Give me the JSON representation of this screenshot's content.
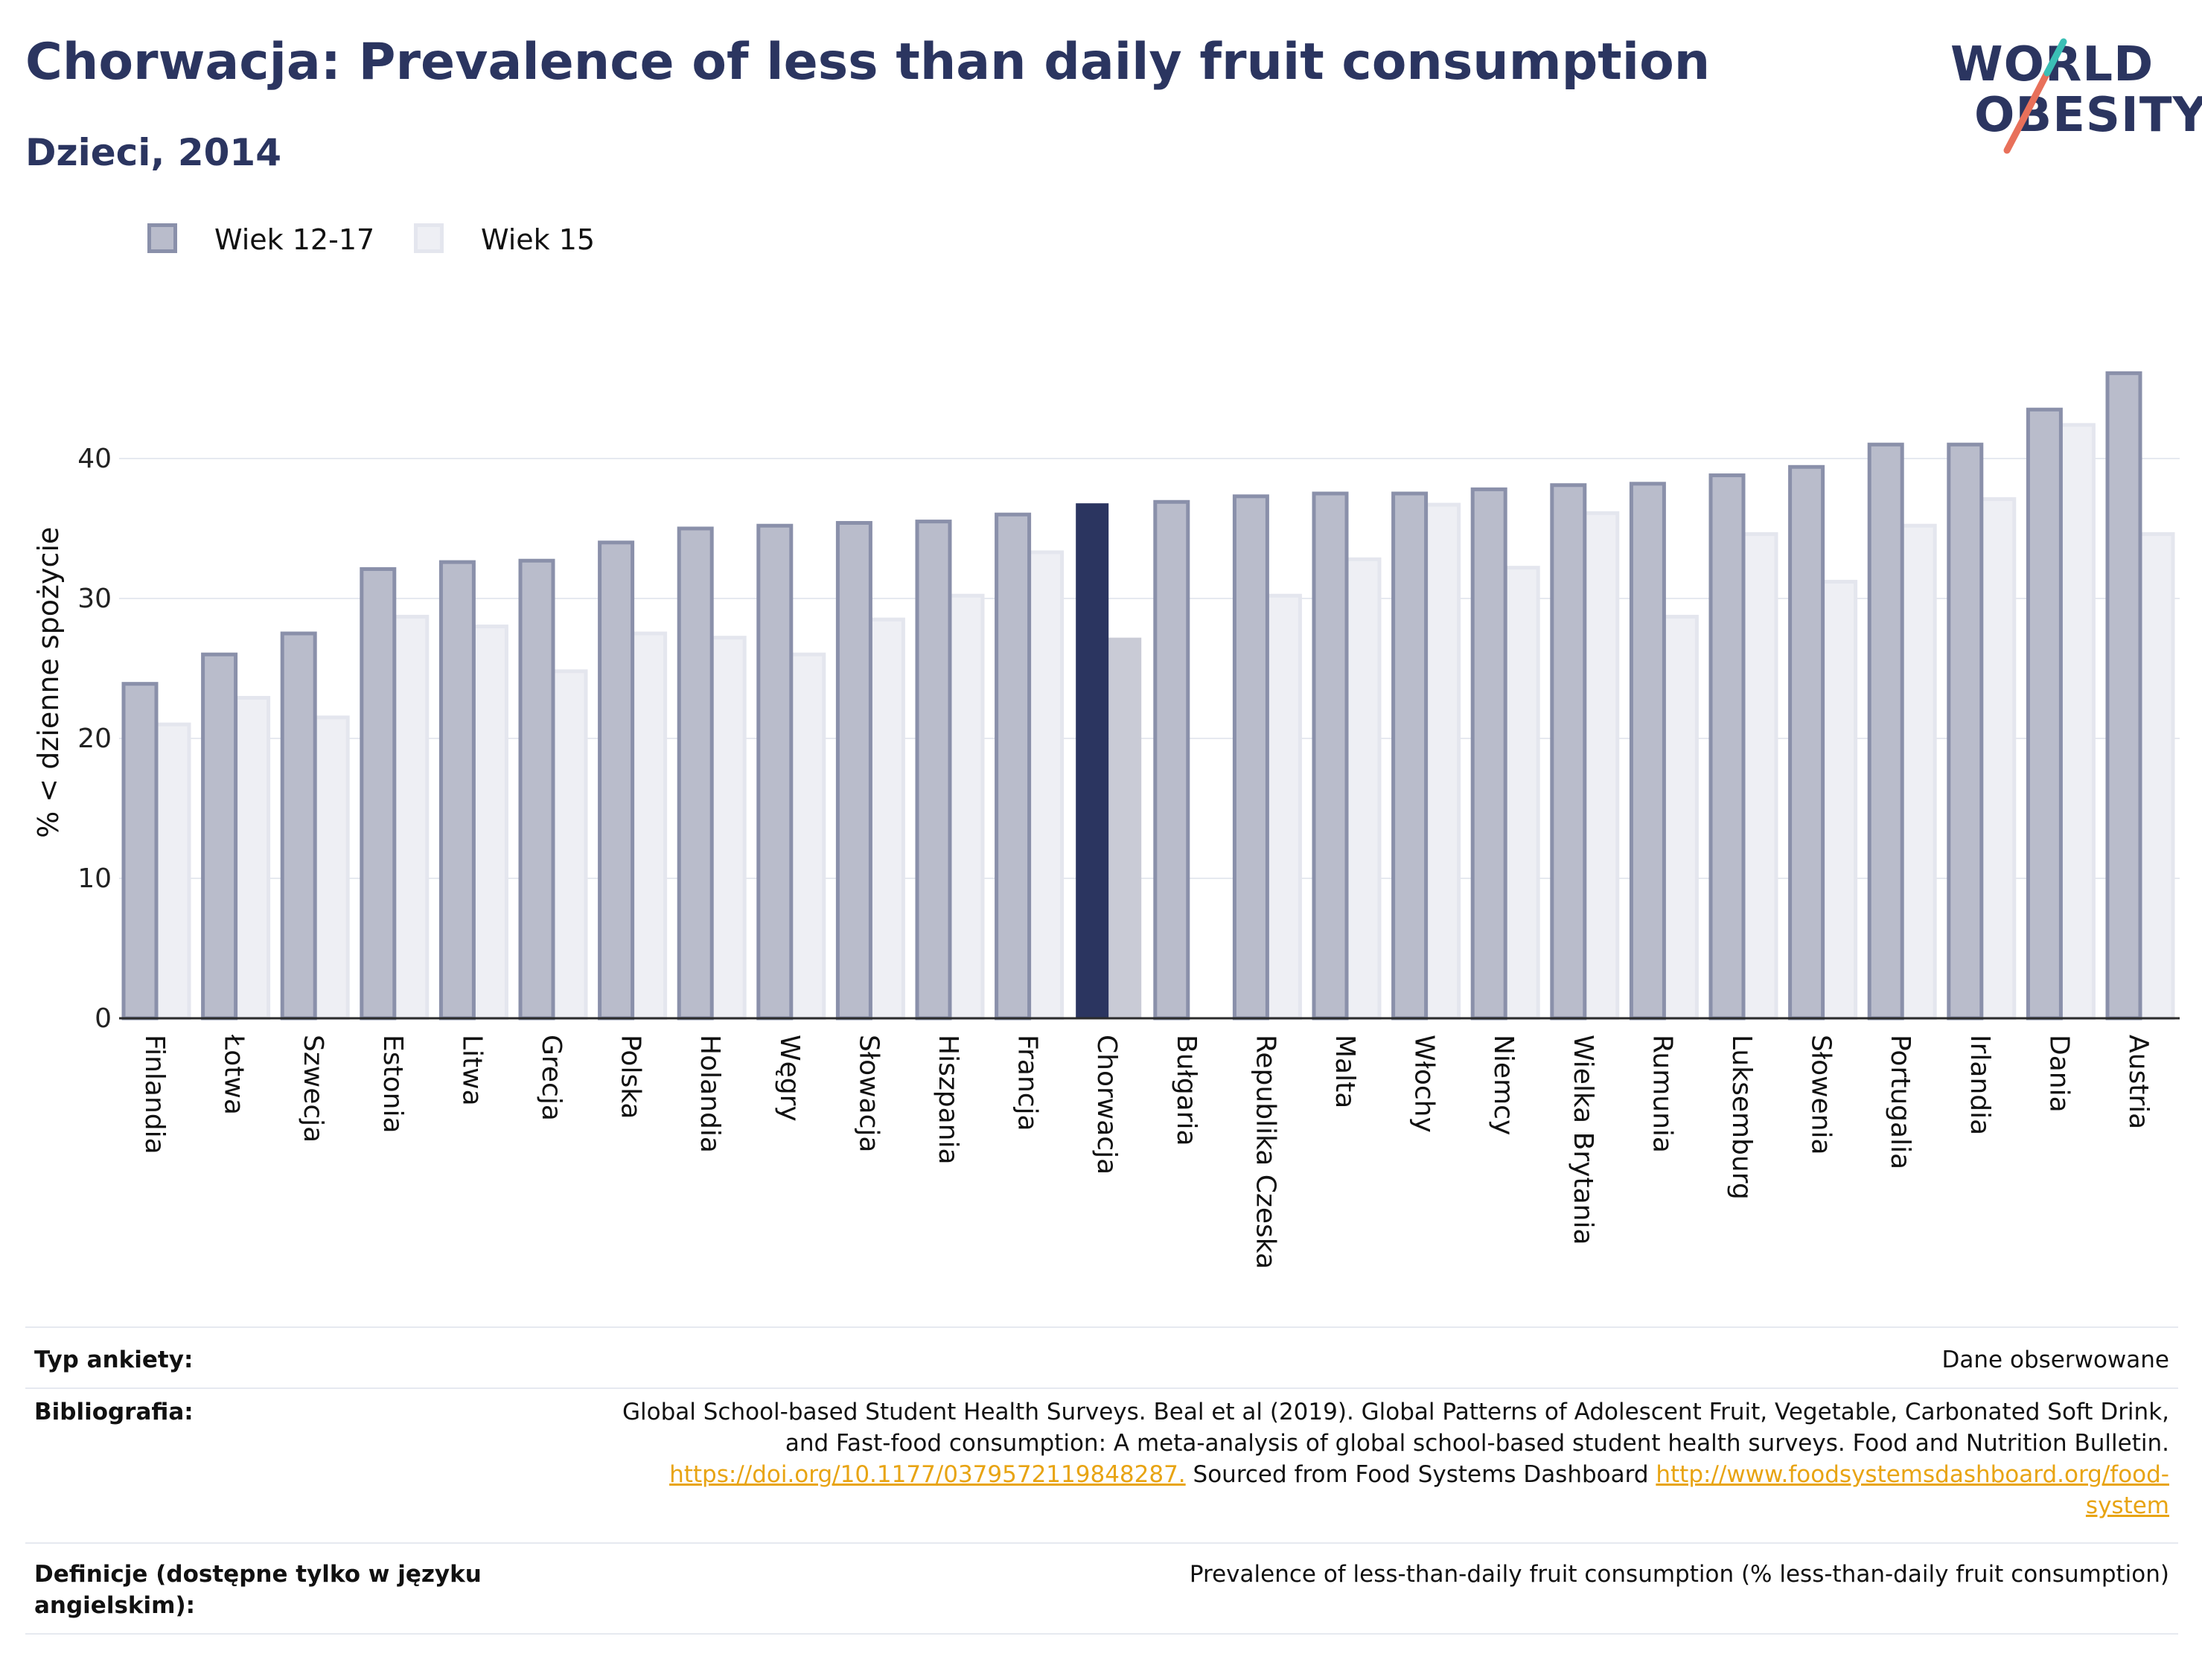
{
  "header": {
    "title": "Chorwacja: Prevalence of less than daily fruit consumption",
    "subtitle": "Dzieci, 2014"
  },
  "logo": {
    "line1": "WORLD",
    "line2": "OBESITY",
    "colors": {
      "text": "#2b3560",
      "slash_top": "#3bbfb5",
      "slash_bottom": "#e8705a"
    }
  },
  "legend": {
    "items": [
      {
        "label": "Wiek 12-17",
        "color": "#b9bccb",
        "border": "#8a90aa"
      },
      {
        "label": "Wiek 15",
        "color": "#eeeff4",
        "border": "#e4e6ee"
      }
    ]
  },
  "colors": {
    "series1": "#b9bccb",
    "series1_border": "#8a90aa",
    "series2": "#eeeff4",
    "series2_border": "#e4e6ee",
    "highlight1": "#2b3560",
    "highlight2": "#c9cbd6",
    "axis": "#2b2b2b",
    "grid": "#e6e9f0"
  },
  "chart_data": {
    "type": "bar",
    "ylabel": "% < dzienne spożycie",
    "xlabel": "",
    "ylim": [
      0,
      48
    ],
    "yticks": [
      0,
      10,
      20,
      30,
      40
    ],
    "grid": true,
    "legend_position": "top-left",
    "highlight_category": "Chorwacja",
    "categories": [
      "Finlandia",
      "Łotwa",
      "Szwecja",
      "Estonia",
      "Litwa",
      "Grecja",
      "Polska",
      "Holandia",
      "Węgry",
      "Słowacja",
      "Hiszpania",
      "Francja",
      "Chorwacja",
      "Bułgaria",
      "Republika Czeska",
      "Malta",
      "Włochy",
      "Niemcy",
      "Wielka Brytania",
      "Rumunia",
      "Luksemburg",
      "Słowenia",
      "Portugalia",
      "Irlandia",
      "Dania",
      "Austria"
    ],
    "series": [
      {
        "name": "Wiek 12-17",
        "values": [
          23.9,
          26.0,
          27.5,
          32.1,
          32.6,
          32.7,
          34.0,
          35.0,
          35.2,
          35.4,
          35.5,
          36.0,
          36.8,
          36.9,
          37.3,
          37.5,
          37.5,
          37.8,
          38.1,
          38.2,
          38.8,
          39.4,
          41.0,
          41.0,
          43.5,
          46.1
        ]
      },
      {
        "name": "Wiek 15",
        "values": [
          21.0,
          22.9,
          21.5,
          28.7,
          28.0,
          24.8,
          27.5,
          27.2,
          26.0,
          28.5,
          30.2,
          33.3,
          27.2,
          null,
          30.2,
          32.8,
          36.7,
          32.2,
          36.1,
          28.7,
          34.6,
          31.2,
          35.2,
          37.1,
          42.4,
          34.6
        ]
      }
    ]
  },
  "footer": {
    "rows": [
      {
        "label": "Typ ankiety:",
        "value": "Dane obserwowane"
      },
      {
        "label": "Bibliografia:",
        "value_line1": "Global School-based Student Health Surveys. Beal et al (2019). Global Patterns of Adolescent Fruit, Vegetable, Carbonated Soft Drink,",
        "value_line2": "and Fast-food consumption: A meta-analysis of global school-based student health surveys. Food and Nutrition Bulletin.",
        "link1": "https://doi.org/10.1177/0379572119848287.",
        "value_mid": " Sourced from Food Systems Dashboard ",
        "link2_part1": "http://www.foodsystemsdashboard.org/food-",
        "link2_part2": "system"
      },
      {
        "label_line1": "Definicje (dostępne tylko w języku",
        "label_line2": "angielskim):",
        "value": "Prevalence of less-than-daily fruit consumption (% less-than-daily fruit consumption)"
      }
    ]
  }
}
